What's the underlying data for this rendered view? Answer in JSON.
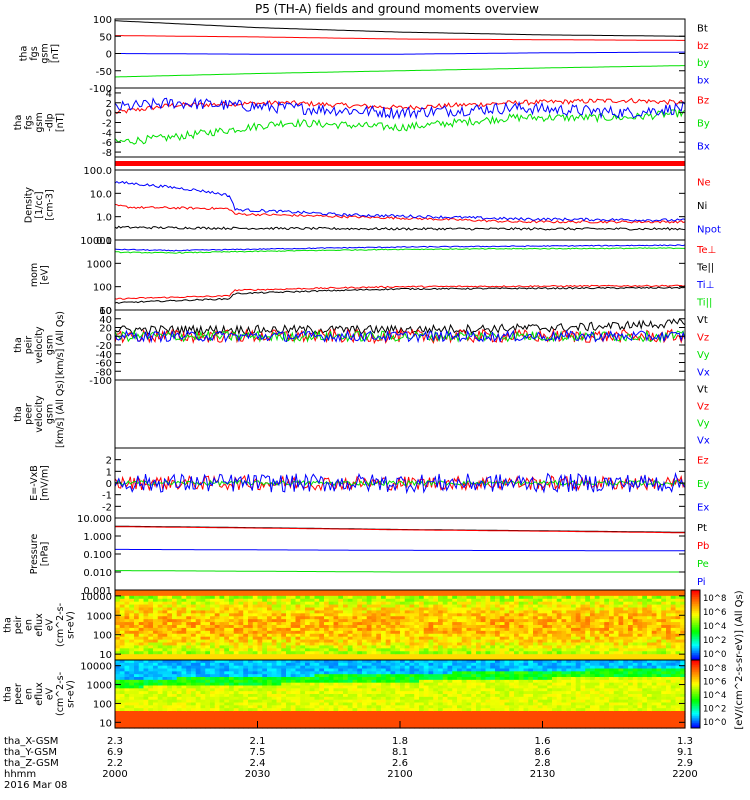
{
  "title": "P5 (TH-A) fields and ground moments overview",
  "colors": {
    "black": "#000000",
    "red": "#ff0000",
    "green": "#00e000",
    "blue": "#0000ff"
  },
  "chart_data": [
    {
      "type": "line",
      "id": "fgs",
      "ylabel": [
        "tha",
        "fgs",
        "gsm",
        "[nT]"
      ],
      "ylim": [
        -100,
        100
      ],
      "ticks": [
        "100",
        "50",
        "0",
        "-50",
        "-100"
      ],
      "tick_values": [
        100,
        50,
        0,
        -50,
        -100
      ],
      "series": [
        {
          "name": "Bt",
          "color": "#000000",
          "x": [
            0,
            0.25,
            0.5,
            0.75,
            1
          ],
          "values": [
            95,
            75,
            62,
            54,
            50
          ],
          "noise": 0
        },
        {
          "name": "bz",
          "color": "#ff0000",
          "x": [
            0,
            0.25,
            0.5,
            0.75,
            1
          ],
          "values": [
            52,
            48,
            42,
            40,
            38
          ],
          "noise": 0
        },
        {
          "name": "by",
          "color": "#00e000",
          "x": [
            0,
            0.25,
            0.5,
            0.75,
            1
          ],
          "values": [
            -68,
            -58,
            -50,
            -42,
            -35
          ],
          "noise": 0
        },
        {
          "name": "bx",
          "color": "#0000ff",
          "x": [
            0,
            0.25,
            0.5,
            0.75,
            1
          ],
          "values": [
            0,
            -2,
            -2,
            2,
            4
          ],
          "noise": 0
        }
      ]
    },
    {
      "type": "line",
      "id": "fgs_dlp",
      "ylabel": [
        "tha",
        "fgs",
        "gsm",
        "-dlp",
        "[nT]"
      ],
      "ylim": [
        -9,
        5
      ],
      "ticks": [
        "4",
        "2",
        "0",
        "-2",
        "-4",
        "-6",
        "-8"
      ],
      "tick_values": [
        4,
        2,
        0,
        -2,
        -4,
        -6,
        -8
      ],
      "series": [
        {
          "name": "Bz",
          "color": "#ff0000",
          "x": [
            0,
            0.1,
            0.3,
            0.5,
            0.7,
            0.9,
            1
          ],
          "values": [
            0,
            1.5,
            2,
            1,
            2,
            2.5,
            2
          ],
          "noise": 0.5
        },
        {
          "name": "By",
          "color": "#00e000",
          "x": [
            0,
            0.1,
            0.3,
            0.5,
            0.7,
            0.9,
            1
          ],
          "values": [
            -6,
            -5,
            -2,
            -3,
            -1,
            -1,
            0
          ],
          "noise": 0.8
        },
        {
          "name": "Bx",
          "color": "#0000ff",
          "x": [
            0,
            0.1,
            0.3,
            0.5,
            0.7,
            0.9,
            1
          ],
          "values": [
            1,
            2,
            1,
            0,
            1,
            0,
            1
          ],
          "noise": 1.2
        }
      ]
    },
    {
      "type": "line",
      "id": "density",
      "ylabel": [
        "Density",
        "[1/cc]",
        "[cm-3]"
      ],
      "scale": "log",
      "ylim": [
        0.1,
        100
      ],
      "ticks": [
        "100.0",
        "10.0",
        "1.0",
        "0.1"
      ],
      "tick_values": [
        100,
        10,
        1,
        0.1
      ],
      "series": [
        {
          "name": "Ne",
          "color": "#ff0000",
          "x": [
            0,
            0.03,
            0.2,
            0.21,
            0.4,
            0.7,
            1
          ],
          "values": [
            3,
            2.5,
            2.2,
            1.3,
            1,
            0.6,
            0.6
          ],
          "noise": 0.05
        },
        {
          "name": "Ni",
          "color": "#000000",
          "x": [
            0,
            0.2,
            0.5,
            1
          ],
          "values": [
            0.35,
            0.32,
            0.3,
            0.3
          ],
          "noise": 0.05
        },
        {
          "name": "Npot",
          "color": "#0000ff",
          "x": [
            0,
            0.08,
            0.2,
            0.21,
            0.4,
            0.7,
            1
          ],
          "values": [
            30,
            20,
            8,
            2,
            1.2,
            0.8,
            0.7
          ],
          "noise": 0.06
        }
      ]
    },
    {
      "type": "line",
      "id": "temperature",
      "ylabel": [
        "mom",
        "[eV]"
      ],
      "scale": "log",
      "ylim": [
        10,
        10000
      ],
      "ticks": [
        "10000",
        "1000",
        "100",
        "10"
      ],
      "tick_values": [
        10000,
        1000,
        100,
        10
      ],
      "series": [
        {
          "name": "Te⊥",
          "color": "#ff0000",
          "x": [
            0,
            0.2,
            0.21,
            0.5,
            1
          ],
          "values": [
            30,
            40,
            70,
            100,
            110
          ],
          "noise": 0.03
        },
        {
          "name": "Te||",
          "color": "#000000",
          "x": [
            0,
            0.2,
            0.21,
            0.5,
            1
          ],
          "values": [
            20,
            30,
            50,
            80,
            90
          ],
          "noise": 0.03
        },
        {
          "name": "Ti⊥",
          "color": "#0000ff",
          "x": [
            0,
            0.1,
            0.5,
            1
          ],
          "values": [
            4000,
            3500,
            5000,
            6000
          ],
          "noise": 0.02
        },
        {
          "name": "Ti||",
          "color": "#00e000",
          "x": [
            0,
            0.1,
            0.5,
            1
          ],
          "values": [
            3000,
            2800,
            4000,
            4500
          ],
          "noise": 0.02
        }
      ]
    },
    {
      "type": "line",
      "id": "velocity_peir",
      "ylabel": [
        "tha",
        "peir",
        "velocity",
        "gsm",
        "[km/s] (All Qs)"
      ],
      "ylim": [
        -100,
        60
      ],
      "ticks": [
        "60",
        "40",
        "20",
        "0",
        "-20",
        "-40",
        "-60",
        "-80",
        "-100"
      ],
      "tick_values": [
        60,
        40,
        20,
        0,
        -20,
        -40,
        -60,
        -80,
        -100
      ],
      "series": [
        {
          "name": "Vt",
          "color": "#000000",
          "x": [
            0,
            0.5,
            0.8,
            1
          ],
          "values": [
            15,
            15,
            20,
            30
          ],
          "noise": 10
        },
        {
          "name": "Vz",
          "color": "#ff0000",
          "x": [
            0,
            1
          ],
          "values": [
            0,
            0
          ],
          "noise": 15
        },
        {
          "name": "Vy",
          "color": "#00e000",
          "x": [
            0,
            1
          ],
          "values": [
            0,
            0
          ],
          "noise": 12
        },
        {
          "name": "Vx",
          "color": "#0000ff",
          "x": [
            0,
            1
          ],
          "values": [
            0,
            0
          ],
          "noise": 12
        }
      ]
    },
    {
      "type": "line",
      "id": "velocity_peer",
      "ylabel": [
        "tha",
        "peer",
        "velocity",
        "gsm",
        "[km/s] (All Qs)"
      ],
      "ylim": [
        0,
        1
      ],
      "ticks": [],
      "tick_values": [],
      "series": [
        {
          "name": "Vt",
          "color": "#000000",
          "x": [],
          "values": [],
          "noise": 0
        },
        {
          "name": "Vz",
          "color": "#ff0000",
          "x": [],
          "values": [],
          "noise": 0
        },
        {
          "name": "Vy",
          "color": "#00e000",
          "x": [],
          "values": [],
          "noise": 0
        },
        {
          "name": "Vx",
          "color": "#0000ff",
          "x": [],
          "values": [],
          "noise": 0
        }
      ]
    },
    {
      "type": "line",
      "id": "efield",
      "ylabel": [
        "E=-VxB",
        "[mV/m]"
      ],
      "ylim": [
        -3,
        3
      ],
      "ticks": [
        "2",
        "1",
        "0",
        "-1",
        "-2"
      ],
      "tick_values": [
        2,
        1,
        0,
        -1,
        -2
      ],
      "series": [
        {
          "name": "Ez",
          "color": "#ff0000",
          "x": [
            0,
            1
          ],
          "values": [
            0,
            0
          ],
          "noise": 0.6
        },
        {
          "name": "Ey",
          "color": "#00e000",
          "x": [
            0,
            1
          ],
          "values": [
            0,
            0
          ],
          "noise": 0.2
        },
        {
          "name": "Ex",
          "color": "#0000ff",
          "x": [
            0,
            1
          ],
          "values": [
            0,
            0
          ],
          "noise": 0.8
        }
      ]
    },
    {
      "type": "line",
      "id": "pressure",
      "ylabel": [
        "Pressure",
        "[nPa]"
      ],
      "scale": "log",
      "ylim": [
        0.001,
        10
      ],
      "ticks": [
        "10.000",
        "1.000",
        "0.100",
        "0.010",
        "0.001"
      ],
      "tick_values": [
        10,
        1,
        0.1,
        0.01,
        0.001
      ],
      "series": [
        {
          "name": "Pt",
          "color": "#000000",
          "x": [
            0,
            0.5,
            1
          ],
          "values": [
            3.5,
            2.3,
            1.6
          ],
          "noise": 0
        },
        {
          "name": "Pb",
          "color": "#ff0000",
          "x": [
            0,
            0.5,
            1
          ],
          "values": [
            3.3,
            2.2,
            1.5
          ],
          "noise": 0
        },
        {
          "name": "Pe",
          "color": "#00e000",
          "x": [
            0,
            0.5,
            1
          ],
          "values": [
            0.012,
            0.01,
            0.01
          ],
          "noise": 0
        },
        {
          "name": "Pi",
          "color": "#0000ff",
          "x": [
            0,
            0.5,
            1
          ],
          "values": [
            0.18,
            0.16,
            0.15
          ],
          "noise": 0
        }
      ]
    },
    {
      "type": "heatmap",
      "id": "peir_eflux",
      "ylabel": [
        "tha",
        "peir",
        "en",
        "eflux",
        "eV",
        "(cm^2-s-",
        "sr-eV)"
      ],
      "scale": "log",
      "ylim": [
        5,
        20000
      ],
      "ticks": [
        "10000",
        "1000",
        "100",
        "10"
      ],
      "tick_values": [
        10000,
        1000,
        100,
        10
      ],
      "colorbar_label": "[eV/(cm^2-s-sr-eV)] (All Qs)",
      "colorbar_ticks": [
        "10^8",
        "10^6",
        "10^4",
        "10^2",
        "10^0"
      ]
    },
    {
      "type": "heatmap",
      "id": "peer_eflux",
      "ylabel": [
        "tha",
        "peer",
        "en",
        "eflux",
        "eV",
        "(cm^2-s-",
        "sr-eV)"
      ],
      "scale": "log",
      "ylim": [
        5,
        20000
      ],
      "ticks": [
        "10000",
        "1000",
        "100",
        "10"
      ],
      "tick_values": [
        10000,
        1000,
        100,
        10
      ],
      "colorbar_label": "[eV/(cm^2-s-sr-eV)] (All Qs)",
      "colorbar_ticks": [
        "10^8",
        "10^6",
        "10^4",
        "10^2",
        "10^0"
      ]
    }
  ],
  "xaxis": {
    "rows": [
      {
        "label": "tha_X-GSM",
        "values": [
          "2.3",
          "2.1",
          "1.8",
          "1.6",
          "1.3"
        ]
      },
      {
        "label": "tha_Y-GSM",
        "values": [
          "6.9",
          "7.5",
          "8.1",
          "8.6",
          "9.1"
        ]
      },
      {
        "label": "tha_Z-GSM",
        "values": [
          "2.2",
          "2.4",
          "2.6",
          "2.8",
          "2.9"
        ]
      },
      {
        "label": "hhmm",
        "values": [
          "2000",
          "2030",
          "2100",
          "2130",
          "2200"
        ]
      }
    ],
    "date": "2016 Mar 08"
  }
}
